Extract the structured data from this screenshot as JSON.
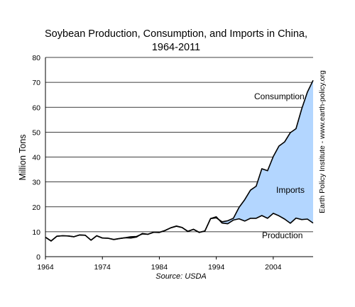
{
  "chart_data": {
    "type": "area",
    "title": "Soybean Production, Consumption, and Imports in China,",
    "subtitle": "1964-2011",
    "xlabel": "",
    "ylabel": "Million Tons",
    "source": "Source: USDA",
    "side_note": "Earth Policy Institute - www.earth-policy.org",
    "xlim": [
      1964,
      2011
    ],
    "ylim": [
      0,
      80
    ],
    "x_ticks": [
      "1964",
      "1974",
      "1984",
      "1994",
      "2004"
    ],
    "y_ticks": [
      "0",
      "10",
      "20",
      "30",
      "40",
      "50",
      "60",
      "70",
      "80"
    ],
    "grid": "horizontal",
    "fill_color": "#b3d6ff",
    "line_color": "#000000",
    "annotations": {
      "consumption": "Consumption",
      "imports": "Imports",
      "production": "Production"
    },
    "x": [
      1964,
      1965,
      1966,
      1967,
      1968,
      1969,
      1970,
      1971,
      1972,
      1973,
      1974,
      1975,
      1976,
      1977,
      1978,
      1979,
      1980,
      1981,
      1982,
      1983,
      1984,
      1985,
      1986,
      1987,
      1988,
      1989,
      1990,
      1991,
      1992,
      1993,
      1994,
      1995,
      1996,
      1997,
      1998,
      1999,
      2000,
      2001,
      2002,
      2003,
      2004,
      2005,
      2006,
      2007,
      2008,
      2009,
      2010,
      2011
    ],
    "series": [
      {
        "name": "Consumption",
        "values": [
          7.8,
          6.3,
          8.2,
          8.4,
          8.3,
          8.0,
          8.7,
          8.6,
          6.6,
          8.4,
          7.5,
          7.4,
          6.9,
          7.3,
          7.6,
          8.0,
          8.1,
          9.1,
          9.0,
          9.8,
          9.8,
          10.5,
          11.6,
          12.3,
          11.7,
          10.1,
          11.0,
          9.8,
          10.3,
          15.3,
          15.6,
          14.0,
          14.4,
          15.4,
          19.8,
          22.9,
          26.7,
          28.3,
          35.3,
          34.5,
          40.2,
          44.4,
          46.1,
          49.8,
          51.4,
          59.4,
          66.1,
          70.8
        ]
      },
      {
        "name": "Production",
        "values": [
          7.8,
          6.3,
          8.2,
          8.4,
          8.3,
          8.0,
          8.7,
          8.6,
          6.6,
          8.4,
          7.5,
          7.4,
          6.9,
          7.3,
          7.6,
          7.5,
          7.9,
          9.3,
          9.0,
          9.8,
          9.7,
          10.5,
          11.6,
          12.2,
          11.7,
          10.2,
          11.0,
          9.7,
          10.3,
          15.3,
          16.0,
          13.5,
          13.2,
          14.7,
          15.2,
          14.3,
          15.4,
          15.4,
          16.5,
          15.4,
          17.4,
          16.4,
          15.1,
          13.4,
          15.5,
          14.9,
          15.1,
          13.5
        ]
      }
    ]
  }
}
